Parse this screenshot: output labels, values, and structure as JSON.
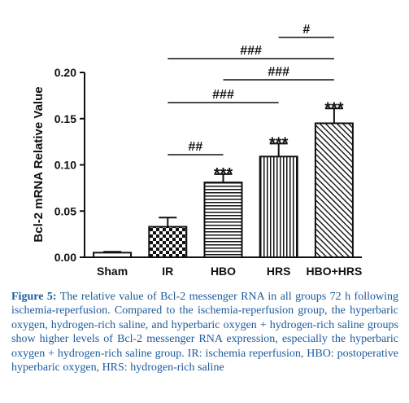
{
  "chart_data": {
    "type": "bar",
    "ylabel": "Bcl-2 mRNA Relative Value",
    "categories": [
      "Sham",
      "IR",
      "HBO",
      "HRS",
      "HBO+HRS"
    ],
    "values": [
      0.005,
      0.033,
      0.081,
      0.109,
      0.145
    ],
    "errors": [
      0.001,
      0.01,
      0.009,
      0.014,
      0.016
    ],
    "patterns": [
      "none",
      "checker",
      "horizontal",
      "vertical",
      "diagonal"
    ],
    "significance": [
      null,
      null,
      "***",
      "***",
      "***"
    ],
    "annotations": [
      {
        "text": "##",
        "from": 1,
        "to": 2
      },
      {
        "text": "###",
        "from": 1,
        "to": 3
      },
      {
        "text": "###",
        "from": 2,
        "to": 4
      },
      {
        "text": "###",
        "from": 1,
        "to": 4
      },
      {
        "text": "#",
        "from": 3,
        "to": 4
      }
    ],
    "color": "#111111",
    "ylim": [
      0,
      0.2
    ],
    "yticks": [
      {
        "value": 0,
        "label": "0.00"
      },
      {
        "value": 0.05,
        "label": "0.05"
      },
      {
        "value": 0.1,
        "label": "0.10"
      },
      {
        "value": 0.15,
        "label": "0.15"
      },
      {
        "value": 0.2,
        "label": "0.20"
      }
    ]
  },
  "caption": {
    "label": "Figure 5:",
    "text": "The relative value of Bcl-2 messenger RNA in all groups 72 h following ischemia-reperfusion. Compared to the ischemia-reperfusion group, the hyperbaric oxygen, hydrogen-rich saline, and hyperbaric oxygen + hydrogen-rich saline groups show higher levels of Bcl-2 messenger RNA expression, especially the hyperbaric oxygen + hydrogen-rich saline group. IR: ischemia reperfusion, HBO: postoperative hyperbaric oxygen, HRS: hydrogen-rich saline"
  }
}
